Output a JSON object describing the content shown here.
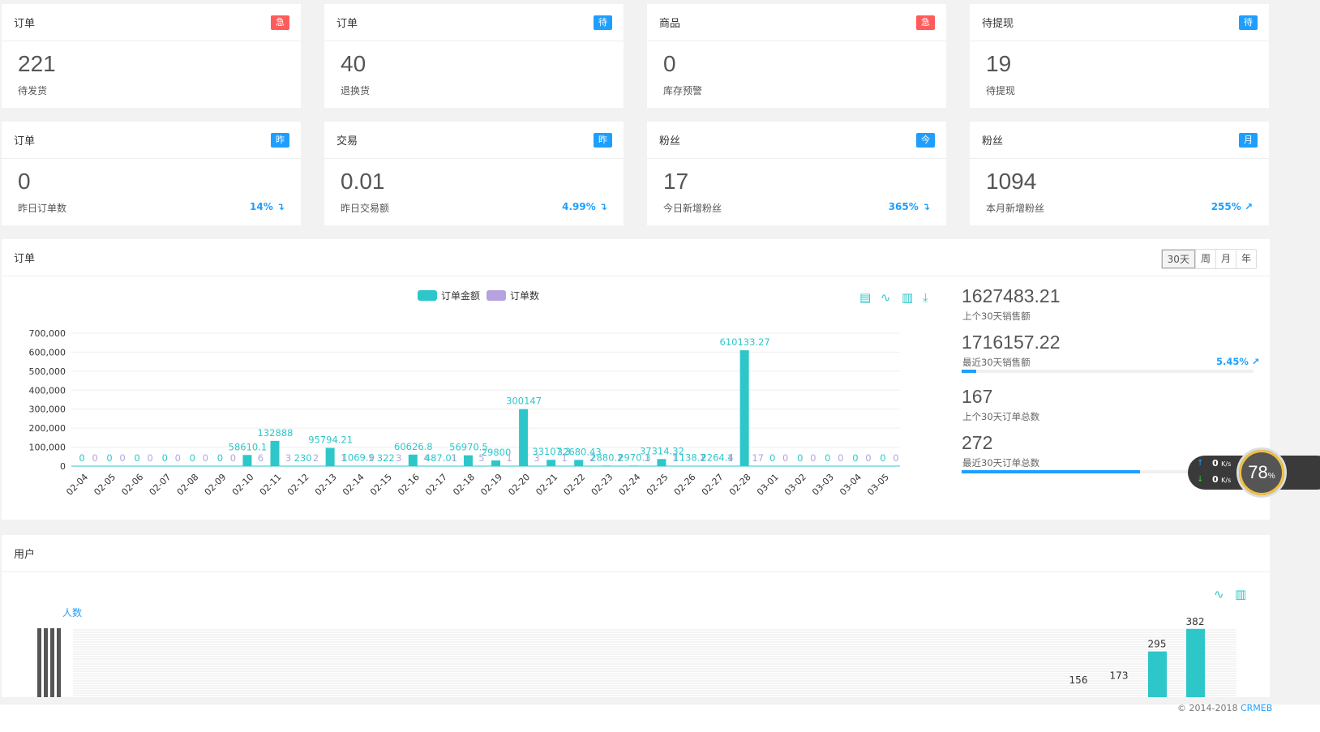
{
  "stats": [
    {
      "title": "订单",
      "badge": "急",
      "value": "221",
      "sub": "待发货",
      "pct": ""
    },
    {
      "title": "订单",
      "badge": "待",
      "value": "40",
      "sub": "退换货",
      "pct": ""
    },
    {
      "title": "商品",
      "badge": "急",
      "value": "0",
      "sub": "库存预警",
      "pct": ""
    },
    {
      "title": "待提现",
      "badge": "待",
      "value": "19",
      "sub": "待提现",
      "pct": ""
    },
    {
      "title": "订单",
      "badge": "昨",
      "value": "0",
      "sub": "昨日订单数",
      "pct": "14% ↴"
    },
    {
      "title": "交易",
      "badge": "昨",
      "value": "0.01",
      "sub": "昨日交易额",
      "pct": "4.99% ↴"
    },
    {
      "title": "粉丝",
      "badge": "今",
      "value": "17",
      "sub": "今日新增粉丝",
      "pct": "365% ↴"
    },
    {
      "title": "粉丝",
      "badge": "月",
      "value": "1094",
      "sub": "本月新增粉丝",
      "pct": "255% ↗"
    }
  ],
  "colors": {
    "badge_red": "#ff5b5b",
    "badge_blue": "#1e9fff",
    "teal": "#2ec7c9",
    "purple": "#b6a2de",
    "accent": "#1e9fff"
  },
  "orders_panel": {
    "title": "订单",
    "ranges": [
      "30天",
      "周",
      "月",
      "年"
    ],
    "toolbox_icons": [
      "data-view-icon",
      "line-chart-icon",
      "bar-chart-icon",
      "download-icon"
    ],
    "kpis": [
      {
        "value": "1627483.21",
        "label": "上个30天销售额",
        "pct": "",
        "progress": null
      },
      {
        "value": "1716157.22",
        "label": "最近30天销售额",
        "pct": "5.45% ↗",
        "progress": 0.05
      },
      {
        "value": "167",
        "label": "上个30天订单总数",
        "pct": "",
        "progress": null
      },
      {
        "value": "272",
        "label": "最近30天订单总数",
        "pct": "",
        "progress": 0.61
      }
    ]
  },
  "network": {
    "up": "0",
    "down": "0",
    "unit": "K/s",
    "percent": "78"
  },
  "users_panel": {
    "title": "用户",
    "toolbox_icons": [
      "line-chart-icon",
      "bar-chart-icon"
    ]
  },
  "footer": {
    "copyright": "© 2014-2018",
    "brand": "CRMEB"
  },
  "chart_data": [
    {
      "type": "bar",
      "legend": [
        "订单金额",
        "订单数"
      ],
      "categories": [
        "02-04",
        "02-05",
        "02-06",
        "02-07",
        "02-08",
        "02-09",
        "02-10",
        "02-11",
        "02-12",
        "02-13",
        "02-14",
        "02-15",
        "02-16",
        "02-17",
        "02-18",
        "02-19",
        "02-20",
        "02-21",
        "02-22",
        "02-23",
        "02-24",
        "02-25",
        "02-26",
        "02-27",
        "02-28",
        "03-01",
        "03-02",
        "03-03",
        "03-04",
        "03-05"
      ],
      "series": [
        {
          "name": "订单金额",
          "values": [
            0,
            0,
            0,
            0,
            0,
            0,
            58610.1,
            132888,
            230,
            95794.21,
            1069.9,
            322,
            60626.8,
            487.01,
            56970.5,
            29800,
            300147,
            33107.3,
            32680.43,
            2880.2,
            2970.3,
            37314.32,
            1138.2,
            2264.4,
            610133.27,
            0,
            0,
            0,
            0,
            0
          ],
          "labels": [
            "0",
            "0",
            "0",
            "0",
            "0",
            "0",
            "58610.1",
            "132888",
            "230",
            "95794.21",
            "1069.9",
            "322",
            "60626.8",
            "487.01",
            "56970.5",
            "29800",
            "300147",
            "33107.3",
            "32680.43",
            "2880.2",
            "2970.3",
            "37314.32",
            "1138.2",
            "2264.4",
            "610133.27",
            "0",
            "0",
            "0",
            "0",
            "0"
          ]
        },
        {
          "name": "订单数",
          "values": [
            0,
            0,
            0,
            0,
            0,
            0,
            6,
            3,
            2,
            1,
            1,
            3,
            4,
            1,
            5,
            1,
            3,
            1,
            2,
            1,
            1,
            1,
            1,
            1,
            17,
            0,
            0,
            0,
            0,
            0
          ],
          "labels": [
            "0",
            "0",
            "0",
            "0",
            "0",
            "0",
            "6",
            "3",
            "2",
            "1",
            "1",
            "3",
            "4",
            "1",
            "5",
            "1",
            "3",
            "1",
            "2",
            "1",
            "1",
            "1",
            "1",
            "1",
            "17",
            "0",
            "0",
            "0",
            "0",
            "0"
          ]
        }
      ],
      "yticks": [
        "700,000",
        "600,000",
        "500,000",
        "400,000",
        "300,000",
        "200,000",
        "100,000",
        "0"
      ],
      "ylim": [
        0,
        700000
      ],
      "grid": true,
      "legend_position": "top-center"
    },
    {
      "type": "bar",
      "ylabel": "人数",
      "visible_values": [
        156,
        173,
        295,
        382
      ],
      "labels": [
        "156",
        "173",
        "295",
        "382"
      ]
    }
  ]
}
